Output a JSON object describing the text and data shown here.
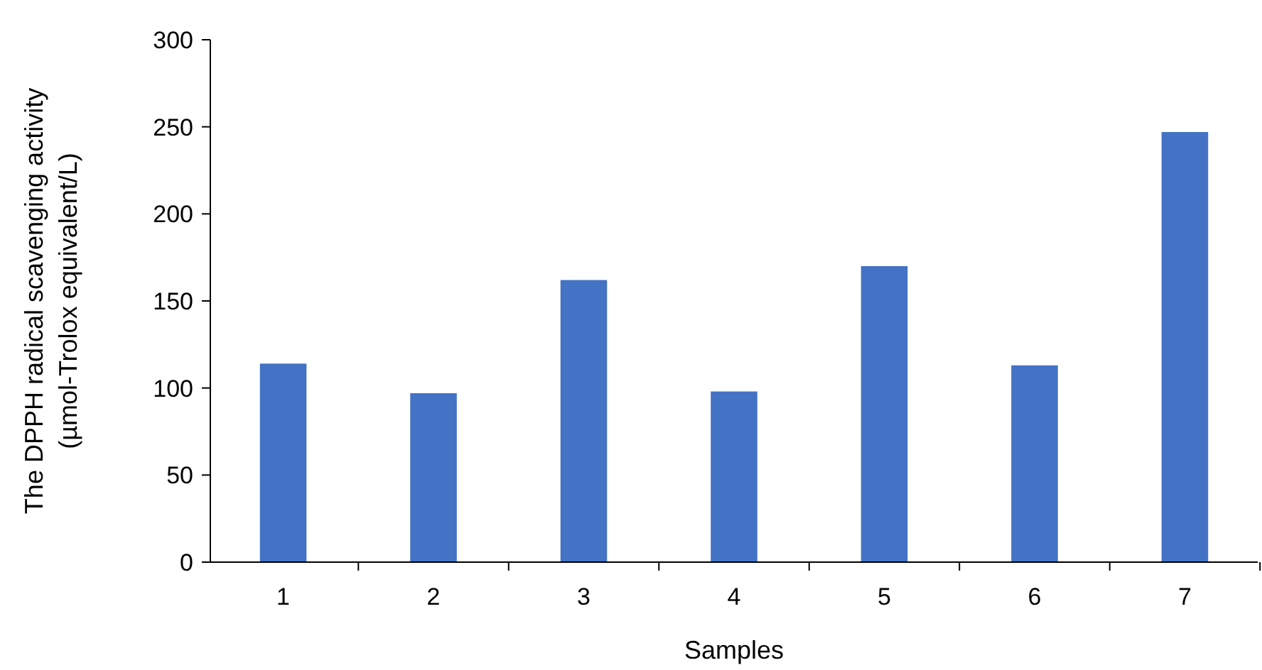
{
  "chart_data": {
    "type": "bar",
    "xlabel": "Samples",
    "ylabel": "The DPPH radical scavenging activity\n(µmol-Trolox equivalent/L)",
    "categories": [
      "1",
      "2",
      "3",
      "4",
      "5",
      "6",
      "7"
    ],
    "values": [
      114,
      97,
      162,
      98,
      170,
      113,
      247
    ],
    "color": "#4472c4",
    "ylim": [
      0,
      300
    ],
    "yticks": [
      0,
      50,
      100,
      150,
      200,
      250,
      300
    ],
    "grid": false
  }
}
